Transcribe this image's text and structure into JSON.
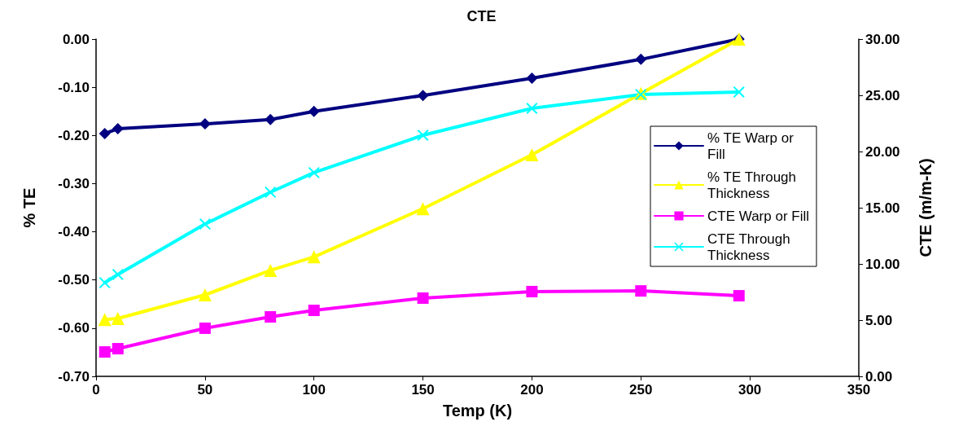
{
  "chart_data": {
    "type": "line",
    "title": "CTE",
    "xlabel": "Temp (K)",
    "ylabel": "% TE",
    "y2label": "CTE (m/m-K)",
    "x": [
      4,
      10,
      50,
      80,
      100,
      150,
      200,
      250,
      295
    ],
    "series": [
      {
        "name": "% TE Warp or Fill",
        "color": "#000080",
        "marker": "diamond",
        "values": [
          -0.196,
          -0.186,
          -0.176,
          -0.167,
          -0.15,
          -0.117,
          -0.081,
          -0.042,
          0.0
        ]
      },
      {
        "name": "% TE Through Thickness",
        "color": "#ffff00",
        "marker": "triangle",
        "values": [
          -0.582,
          -0.58,
          -0.531,
          -0.48,
          -0.452,
          -0.352,
          -0.24,
          -0.113,
          0.0
        ]
      },
      {
        "name": "CTE Warp or Fill",
        "color": "#ff00ff",
        "marker": "square",
        "axis": "y2",
        "values": [
          2.17,
          2.46,
          4.28,
          5.29,
          5.87,
          6.96,
          7.54,
          7.6,
          7.17
        ]
      },
      {
        "name": "CTE Through Thickness",
        "color": "#00ffff",
        "marker": "cross",
        "axis": "y2",
        "values": [
          8.33,
          9.06,
          13.55,
          16.38,
          18.12,
          21.45,
          23.84,
          25.07,
          25.29
        ]
      }
    ],
    "xlim": [
      0,
      350
    ],
    "xticks": [
      0,
      50,
      100,
      150,
      200,
      250,
      300,
      350
    ],
    "ylim": [
      -0.7,
      0
    ],
    "yticks": [
      {
        "value": -0.7,
        "label": "-0.70"
      },
      {
        "value": -0.6,
        "label": "-0.60"
      },
      {
        "value": -0.5,
        "label": "-0.50"
      },
      {
        "value": -0.4,
        "label": "-0.40"
      },
      {
        "value": -0.3,
        "label": "-0.30"
      },
      {
        "value": -0.2,
        "label": "-0.20"
      },
      {
        "value": -0.1,
        "label": "-0.10"
      },
      {
        "value": 0,
        "label": "0.00"
      }
    ],
    "y2lim": [
      0,
      30
    ],
    "y2ticks": [
      {
        "value": 0,
        "label": "0.00"
      },
      {
        "value": 5,
        "label": "5.00"
      },
      {
        "value": 10,
        "label": "10.00"
      },
      {
        "value": 15,
        "label": "15.00"
      },
      {
        "value": 20,
        "label": "20.00"
      },
      {
        "value": 25,
        "label": "25.00"
      },
      {
        "value": 30,
        "label": "30.00"
      }
    ],
    "grid": false,
    "legend": "right",
    "line_style": "solid"
  }
}
